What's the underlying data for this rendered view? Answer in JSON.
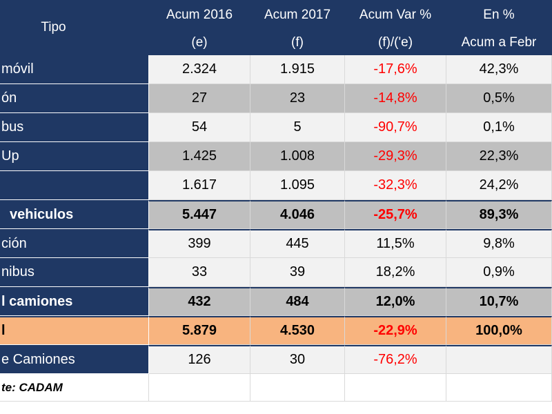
{
  "table": {
    "header": [
      [
        "Tipo",
        "Acum 2016",
        "Acum 2017",
        "Acum Var %",
        "En %"
      ],
      [
        "(e)",
        "(f)",
        "(f)/('e)",
        "Acum a Febr"
      ]
    ],
    "rows": [
      {
        "label": "móvil",
        "cells": [
          "2.324",
          "1.915",
          "-17,6%",
          "42,3%"
        ]
      },
      {
        "label": "ón",
        "cells": [
          "27",
          "23",
          "-14,8%",
          "0,5%"
        ]
      },
      {
        "label": "bus",
        "cells": [
          "54",
          "5",
          "-90,7%",
          "0,1%"
        ]
      },
      {
        "label": "Up",
        "cells": [
          "1.425",
          "1.008",
          "-29,3%",
          "22,3%"
        ]
      },
      {
        "label": null,
        "cells": [
          "1.617",
          "1.095",
          "-32,3%",
          "24,2%"
        ]
      },
      {
        "label": "vehiculos",
        "cells": [
          "5.447",
          "4.046",
          "-25,7%",
          "89,3%"
        ]
      },
      {
        "label": "ción",
        "cells": [
          "399",
          "445",
          "11,5%",
          "9,8%"
        ]
      },
      {
        "label": "nibus",
        "cells": [
          "33",
          "39",
          "18,2%",
          "0,9%"
        ]
      },
      {
        "label": "l camiones",
        "cells": [
          "432",
          "484",
          "12,0%",
          "10,7%"
        ]
      },
      {
        "label": "l",
        "cells": [
          "5.879",
          "4.530",
          "-22,9%",
          "100,0%"
        ]
      },
      {
        "label": "e Camiones",
        "cells": [
          "126",
          "30",
          "-76,2%"
        ]
      },
      {
        "label": "te: CADAM",
        "cells": []
      }
    ]
  }
}
